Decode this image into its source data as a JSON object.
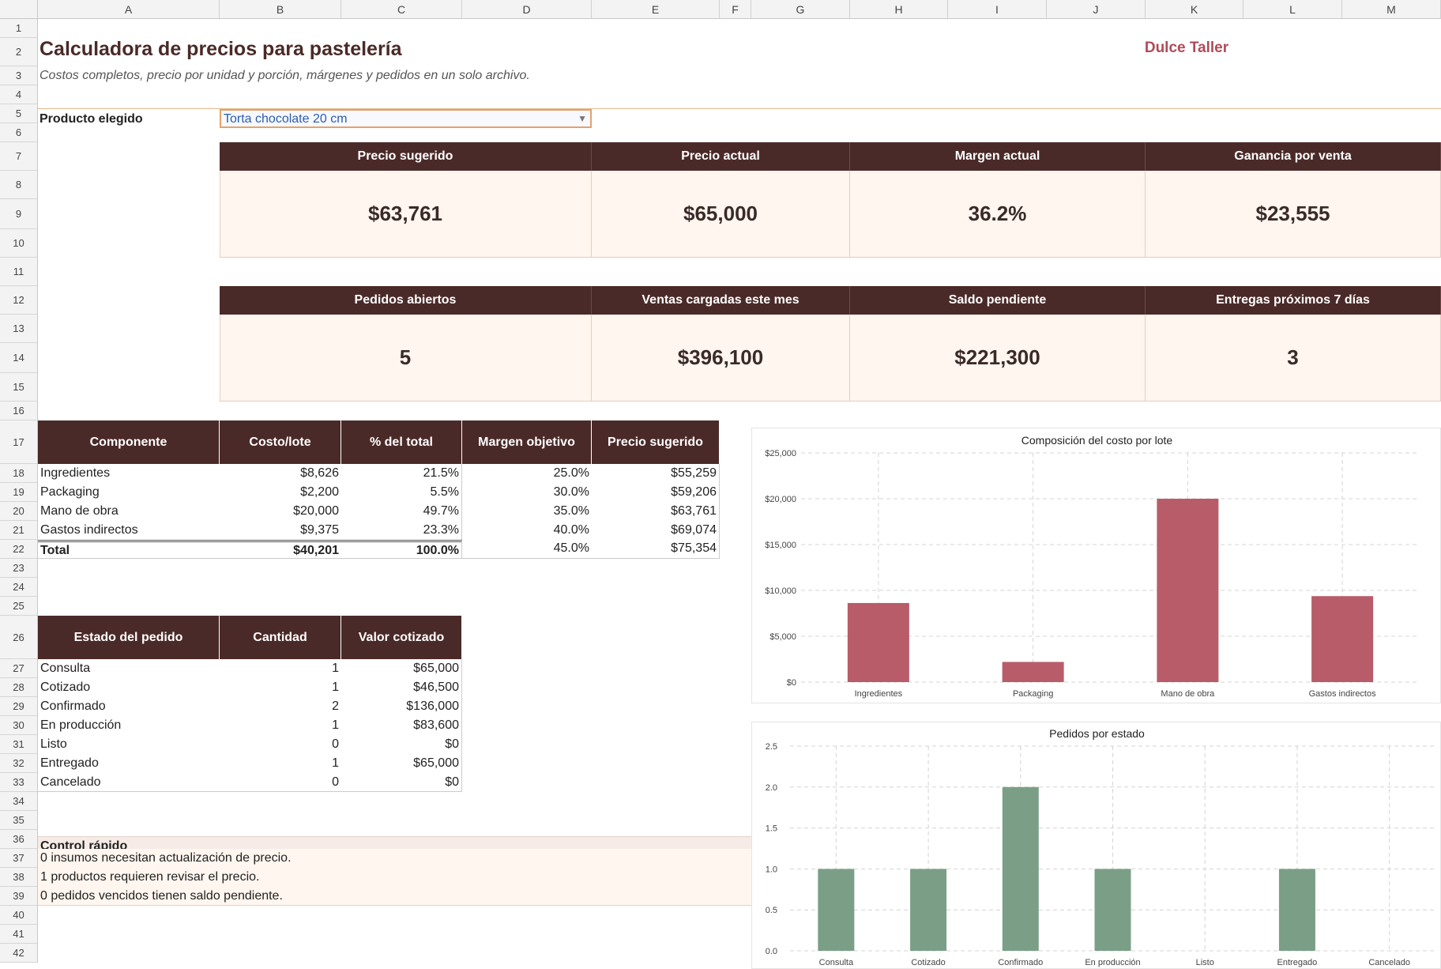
{
  "columns": [
    "A",
    "B",
    "C",
    "D",
    "E",
    "F",
    "G",
    "H",
    "I",
    "J",
    "K",
    "L",
    "M"
  ],
  "rows": [
    "1",
    "2",
    "3",
    "4",
    "5",
    "6",
    "7",
    "8",
    "9",
    "10",
    "11",
    "12",
    "13",
    "14",
    "15",
    "16",
    "17",
    "18",
    "19",
    "20",
    "21",
    "22",
    "23",
    "24",
    "25",
    "26",
    "27",
    "28",
    "29",
    "30",
    "31",
    "32",
    "33",
    "34",
    "35",
    "36",
    "37",
    "38",
    "39",
    "40",
    "41",
    "42"
  ],
  "header": {
    "title": "Calculadora de precios para pastelería",
    "subtitle": "Costos completos, precio por unidad y porción, márgenes y pedidos en un solo archivo.",
    "brand": "Dulce Taller"
  },
  "selector": {
    "label": "Producto elegido",
    "value": "Torta chocolate 20 cm"
  },
  "kpis_top": [
    {
      "label": "Precio sugerido",
      "value": "$63,761"
    },
    {
      "label": "Precio actual",
      "value": "$65,000"
    },
    {
      "label": "Margen actual",
      "value": "36.2%"
    },
    {
      "label": "Ganancia por venta",
      "value": "$23,555"
    }
  ],
  "kpis_bottom": [
    {
      "label": "Pedidos abiertos",
      "value": "5"
    },
    {
      "label": "Ventas cargadas este mes",
      "value": "$396,100"
    },
    {
      "label": "Saldo pendiente",
      "value": "$221,300"
    },
    {
      "label": "Entregas próximos 7 días",
      "value": "3"
    }
  ],
  "cost_table": {
    "headers": [
      "Componente",
      "Costo/lote",
      "% del total",
      "Margen objetivo",
      "Precio sugerido"
    ],
    "rows": [
      [
        "Ingredientes",
        "$8,626",
        "21.5%",
        "25.0%",
        "$55,259"
      ],
      [
        "Packaging",
        "$2,200",
        "5.5%",
        "30.0%",
        "$59,206"
      ],
      [
        "Mano de obra",
        "$20,000",
        "49.7%",
        "35.0%",
        "$63,761"
      ],
      [
        "Gastos indirectos",
        "$9,375",
        "23.3%",
        "40.0%",
        "$69,074"
      ]
    ],
    "total": [
      "Total",
      "$40,201",
      "100.0%",
      "45.0%",
      "$75,354"
    ]
  },
  "status_table": {
    "headers": [
      "Estado del pedido",
      "Cantidad",
      "Valor cotizado"
    ],
    "rows": [
      [
        "Consulta",
        "1",
        "$65,000"
      ],
      [
        "Cotizado",
        "1",
        "$46,500"
      ],
      [
        "Confirmado",
        "2",
        "$136,000"
      ],
      [
        "En producción",
        "1",
        "$83,600"
      ],
      [
        "Listo",
        "0",
        "$0"
      ],
      [
        "Entregado",
        "1",
        "$65,000"
      ],
      [
        "Cancelado",
        "0",
        "$0"
      ]
    ]
  },
  "control": {
    "title": "Control rápido",
    "lines": [
      "0 insumos necesitan actualización de precio.",
      "1 productos requieren revisar el precio.",
      "0 pedidos vencidos tienen saldo pendiente."
    ]
  },
  "colors": {
    "header_brown": "#4a2a28",
    "bar_red": "#b85c6a",
    "bar_green": "#7a9f86",
    "kpi_bg": "#fff6ef"
  },
  "chart_data": [
    {
      "type": "bar",
      "title": "Composición del costo por lote",
      "categories": [
        "Ingredientes",
        "Packaging",
        "Mano de obra",
        "Gastos indirectos"
      ],
      "values": [
        8626,
        2200,
        20000,
        9375
      ],
      "ylim": [
        0,
        25000
      ],
      "yticks": [
        "$0",
        "$5,000",
        "$10,000",
        "$15,000",
        "$20,000",
        "$25,000"
      ],
      "ytick_values": [
        0,
        5000,
        10000,
        15000,
        20000,
        25000
      ],
      "grid": true
    },
    {
      "type": "bar",
      "title": "Pedidos por estado",
      "categories": [
        "Consulta",
        "Cotizado",
        "Confirmado",
        "En producción",
        "Listo",
        "Entregado",
        "Cancelado"
      ],
      "values": [
        1,
        1,
        2,
        1,
        0,
        1,
        0
      ],
      "ylim": [
        0,
        2.5
      ],
      "yticks": [
        "0.0",
        "0.5",
        "1.0",
        "1.5",
        "2.0",
        "2.5"
      ],
      "ytick_values": [
        0,
        0.5,
        1,
        1.5,
        2,
        2.5
      ],
      "grid": true
    }
  ]
}
